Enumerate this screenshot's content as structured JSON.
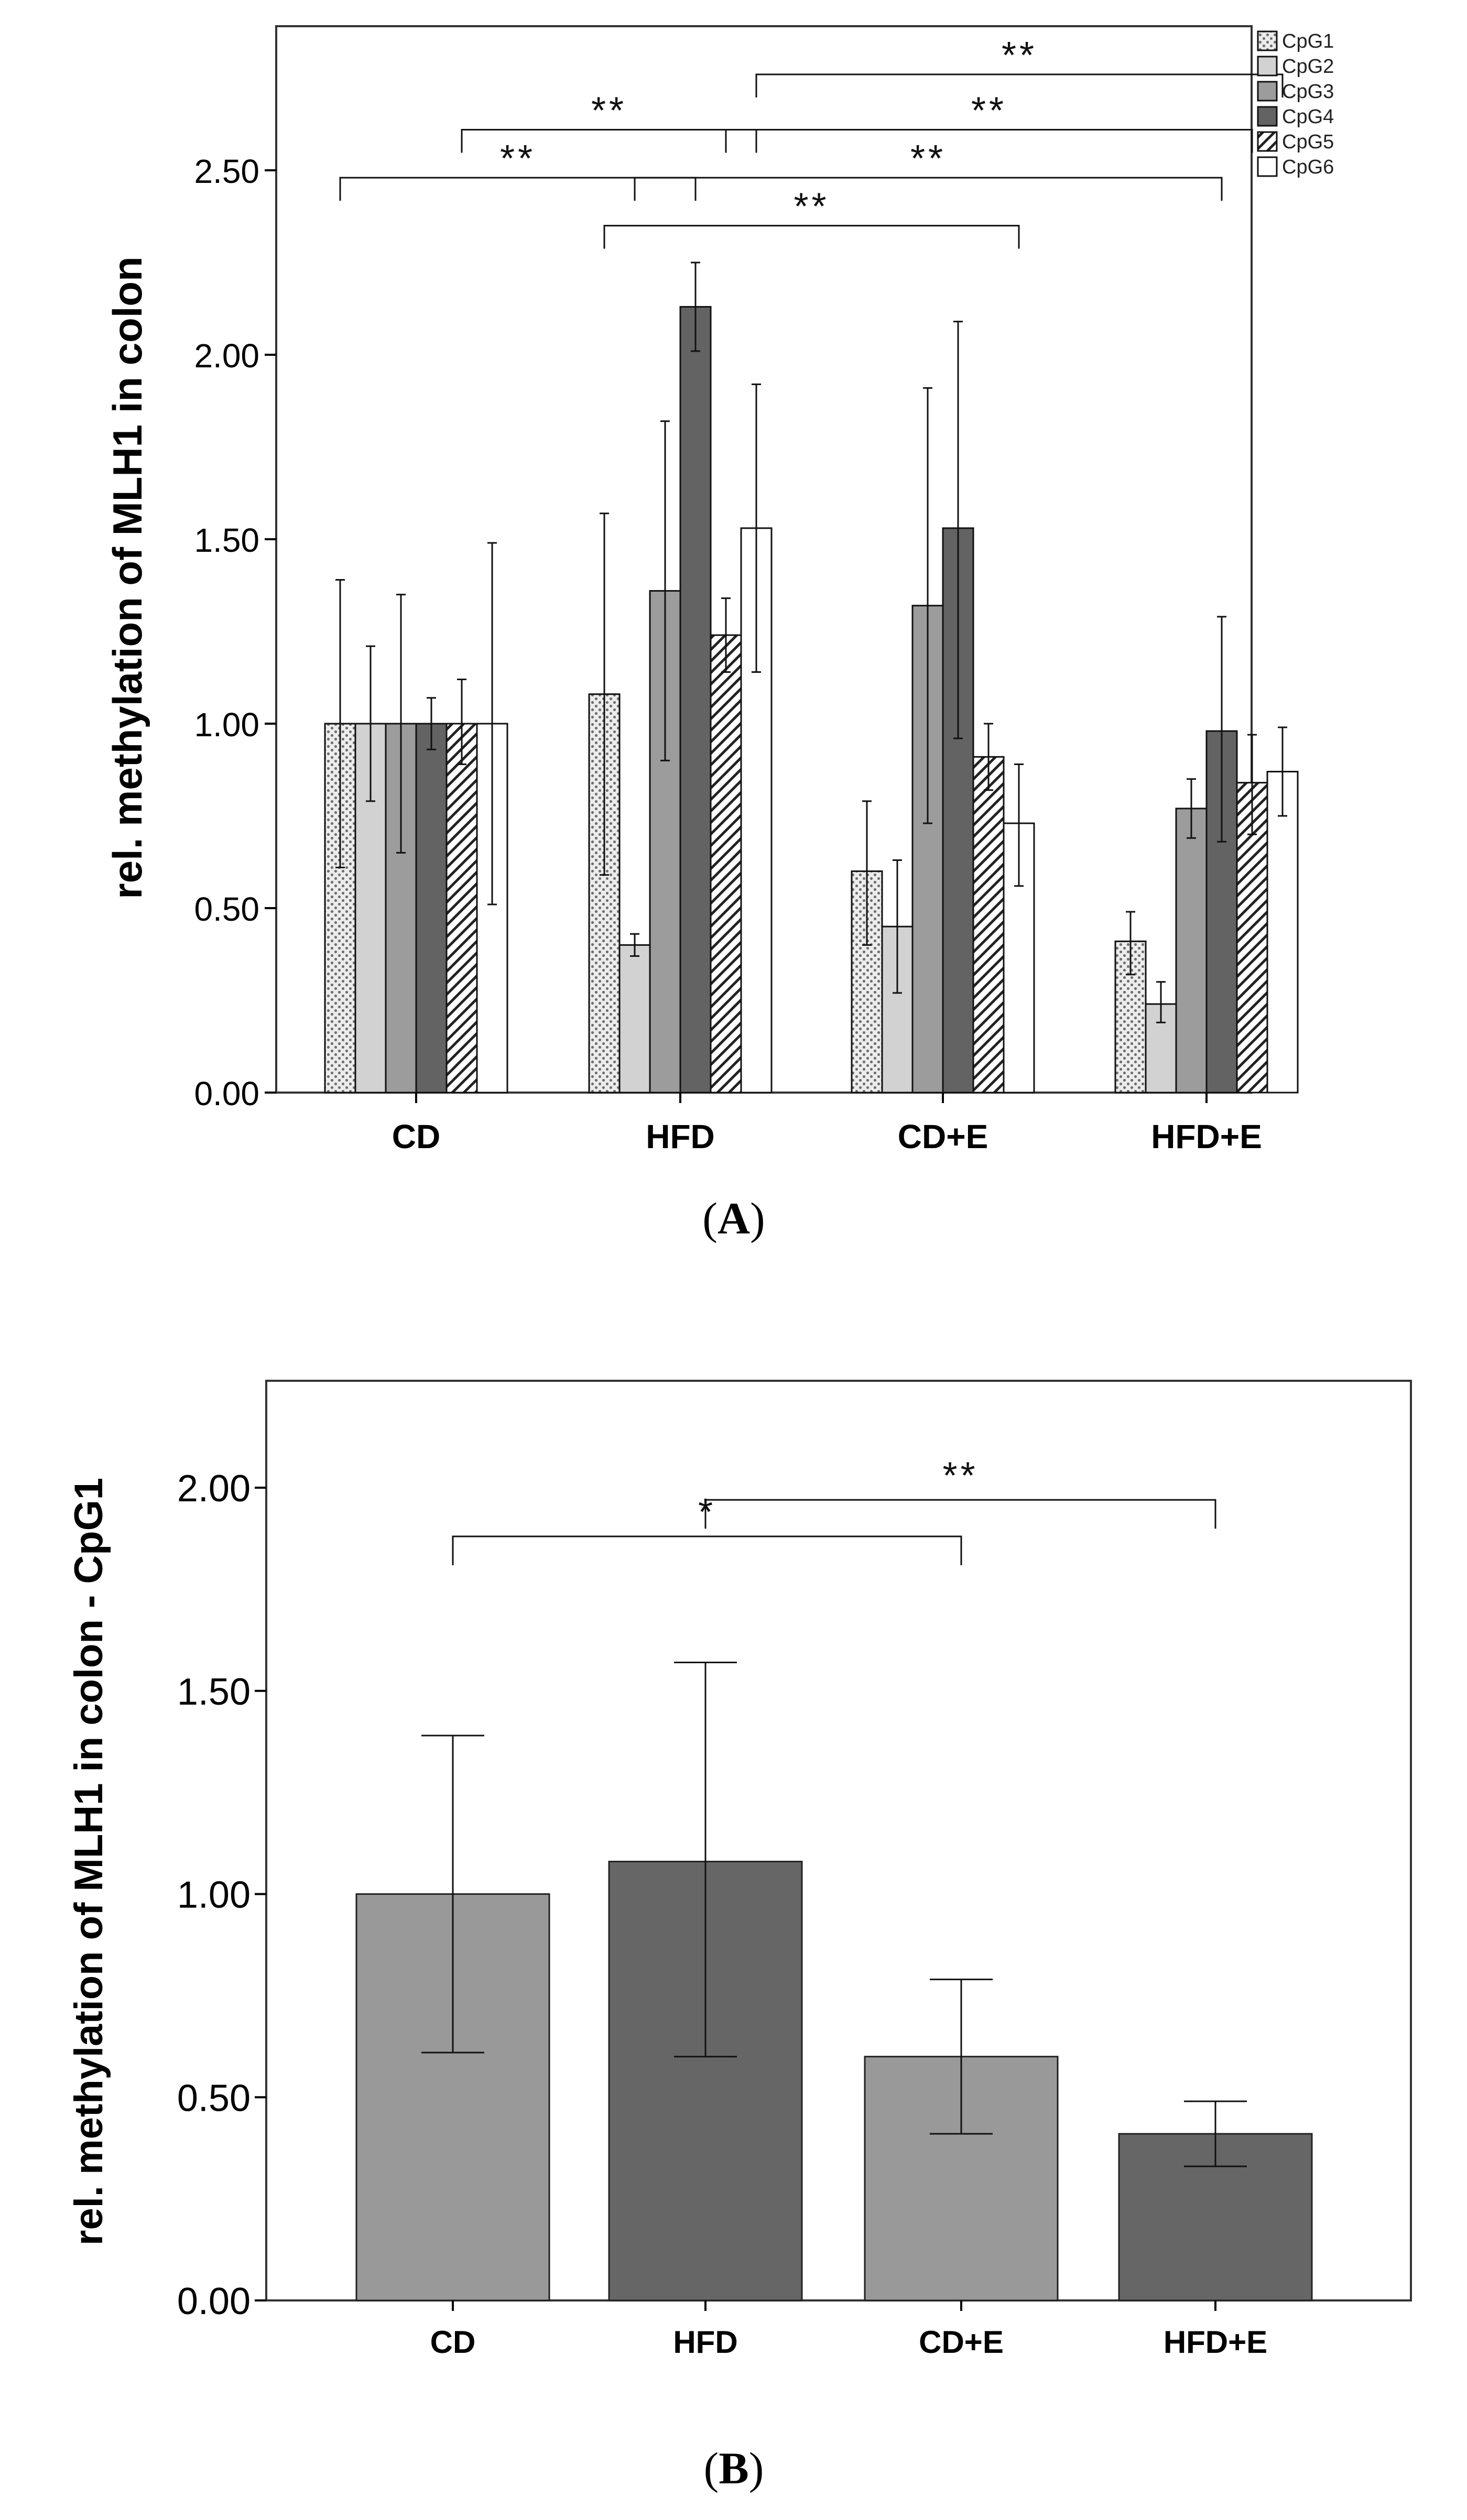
{
  "colors": {
    "cpg1": "#ececec",
    "cpg2": "#d2d2d2",
    "cpg3": "#9c9c9c",
    "cpg4": "#636363",
    "cpg5": "#ffffff",
    "cpg6": "#ffffff",
    "bar_light": "#999999",
    "bar_dark": "#666666"
  },
  "chart_data": [
    {
      "type": "bar",
      "panel_label": "A",
      "title": "",
      "xlabel": "",
      "ylabel": "rel. methylation of MLH1 in colon",
      "ylim": [
        0,
        2.8
      ],
      "yticks": [
        0.0,
        0.5,
        1.0,
        1.5,
        2.0,
        2.5
      ],
      "ytick_labels": [
        "0.00",
        "0.50",
        "1.00",
        "1.50",
        "2.00",
        "2.50"
      ],
      "categories": [
        "CD",
        "HFD",
        "CD+E",
        "HFD+E"
      ],
      "legend_position": "top-right-outside",
      "series": [
        {
          "name": "CpG1",
          "pattern": "dots",
          "values": [
            1.0,
            1.08,
            0.6,
            0.41
          ],
          "err_low": [
            0.61,
            0.59,
            0.4,
            0.32
          ],
          "err_high": [
            1.39,
            1.57,
            0.79,
            0.49
          ]
        },
        {
          "name": "CpG2",
          "pattern": "solid",
          "values": [
            1.0,
            0.4,
            0.45,
            0.24
          ],
          "err_low": [
            0.79,
            0.37,
            0.27,
            0.19
          ],
          "err_high": [
            1.21,
            0.43,
            0.63,
            0.3
          ]
        },
        {
          "name": "CpG3",
          "pattern": "solid",
          "values": [
            1.0,
            1.36,
            1.32,
            0.77
          ],
          "err_low": [
            0.65,
            0.9,
            0.73,
            0.69
          ],
          "err_high": [
            1.35,
            1.82,
            1.91,
            0.85
          ]
        },
        {
          "name": "CpG4",
          "pattern": "solid",
          "values": [
            1.0,
            2.13,
            1.53,
            0.98
          ],
          "err_low": [
            0.93,
            2.01,
            0.96,
            0.68
          ],
          "err_high": [
            1.07,
            2.25,
            2.09,
            1.29
          ]
        },
        {
          "name": "CpG5",
          "pattern": "hatch",
          "values": [
            1.0,
            1.24,
            0.91,
            0.84
          ],
          "err_low": [
            0.89,
            1.14,
            0.82,
            0.7
          ],
          "err_high": [
            1.12,
            1.34,
            1.0,
            0.97
          ]
        },
        {
          "name": "CpG6",
          "pattern": "outline",
          "values": [
            1.0,
            1.53,
            0.73,
            0.87
          ],
          "err_low": [
            0.51,
            1.14,
            0.56,
            0.75
          ],
          "err_high": [
            1.49,
            1.92,
            0.89,
            0.99
          ]
        }
      ],
      "annotations": [
        {
          "text": "**",
          "from": {
            "category": "CD",
            "series": "CpG1"
          },
          "to": {
            "category": "HFD",
            "series": "CpG4"
          },
          "bracket_y": 2.48,
          "tier": 0
        },
        {
          "text": "**",
          "from": {
            "category": "CD",
            "series": "CpG5"
          },
          "to": {
            "category": "HFD",
            "series": "CpG6"
          },
          "bracket_y": 2.61,
          "tier": 0
        },
        {
          "text": "**",
          "from": {
            "category": "HFD",
            "series": "CpG1"
          },
          "to": {
            "category": "CD+E",
            "series": "CpG6"
          },
          "bracket_y": 2.35,
          "tier": 1
        },
        {
          "text": "**",
          "from": {
            "category": "HFD",
            "series": "CpG2"
          },
          "to": {
            "category": "HFD+E",
            "series": "CpG4"
          },
          "bracket_y": 2.48,
          "tier": 1
        },
        {
          "text": "**",
          "from": {
            "category": "HFD",
            "series": "CpG5"
          },
          "to": {
            "category": "HFD+E",
            "series": "CpG5"
          },
          "bracket_y": 2.61,
          "tier": 1
        },
        {
          "text": "**",
          "from": {
            "category": "HFD",
            "series": "CpG6"
          },
          "to": {
            "category": "HFD+E",
            "series": "CpG6"
          },
          "bracket_y": 2.76,
          "tier": 1
        }
      ]
    },
    {
      "type": "bar",
      "panel_label": "B",
      "title": "",
      "xlabel": "",
      "ylabel": "rel. methylation of MLH1 in colon - CpG1",
      "ylim": [
        0,
        2.2
      ],
      "yticks": [
        0.0,
        0.5,
        1.0,
        1.5,
        2.0
      ],
      "ytick_labels": [
        "0.00",
        "0.50",
        "1.00",
        "1.50",
        "2.00"
      ],
      "categories": [
        "CD",
        "HFD",
        "CD+E",
        "HFD+E"
      ],
      "values": [
        1.0,
        1.08,
        0.6,
        0.41
      ],
      "err_low": [
        0.61,
        0.6,
        0.41,
        0.33
      ],
      "err_high": [
        1.39,
        1.57,
        0.79,
        0.49
      ],
      "bar_tones": [
        "light",
        "dark",
        "light",
        "dark"
      ],
      "annotations": [
        {
          "text": "*",
          "from": "CD",
          "to": "CD+E",
          "bracket_y": 1.88
        },
        {
          "text": "**",
          "from": "HFD",
          "to": "HFD+E",
          "bracket_y": 1.97
        }
      ]
    }
  ]
}
